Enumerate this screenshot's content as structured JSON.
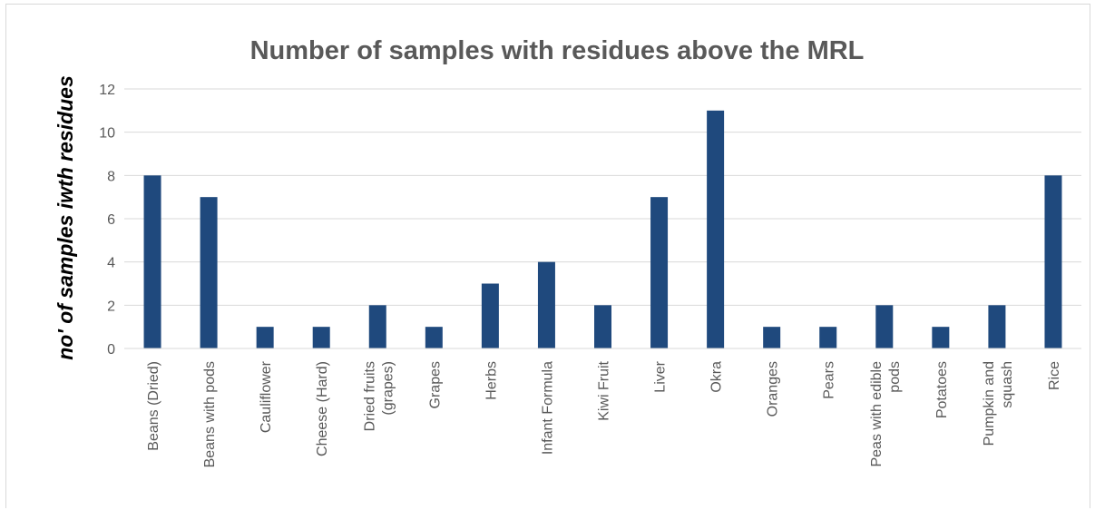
{
  "chart_data": {
    "type": "bar",
    "title": "Number of samples with residues above the MRL",
    "ylabel": "no' of samples iwth residues",
    "xlabel": "",
    "ylim": [
      0,
      12
    ],
    "yticks": [
      0,
      2,
      4,
      6,
      8,
      10,
      12
    ],
    "grid": true,
    "legend": "none",
    "bar_color": "#1f497d",
    "categories": [
      [
        "Beans (Dried)"
      ],
      [
        "Beans with pods"
      ],
      [
        "Cauliflower"
      ],
      [
        "Cheese (Hard)"
      ],
      [
        "Dried fruits",
        "(grapes)"
      ],
      [
        "Grapes"
      ],
      [
        "Herbs"
      ],
      [
        "Infant Formula"
      ],
      [
        "Kiwi Fruit"
      ],
      [
        "Liver"
      ],
      [
        "Okra"
      ],
      [
        "Oranges"
      ],
      [
        "Pears"
      ],
      [
        "Peas with edible",
        "pods"
      ],
      [
        "Potatoes"
      ],
      [
        "Pumpkin and",
        "squash"
      ],
      [
        "Rice"
      ]
    ],
    "values": [
      8,
      7,
      1,
      1,
      2,
      1,
      3,
      4,
      2,
      7,
      11,
      1,
      1,
      2,
      1,
      2,
      8
    ]
  }
}
